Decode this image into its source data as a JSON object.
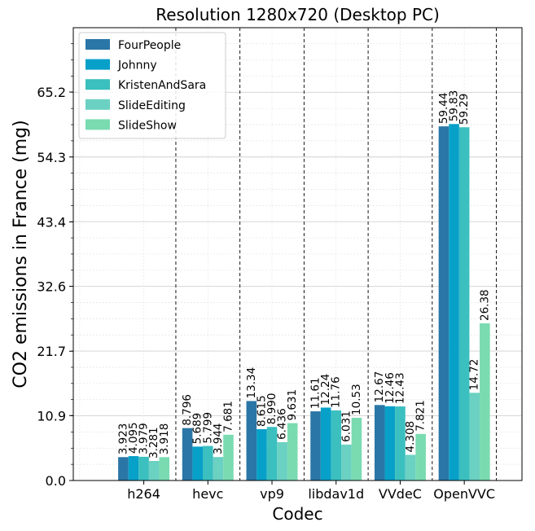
{
  "chart_data": {
    "type": "bar",
    "title": "Resolution 1280x720 (Desktop PC)",
    "xlabel": "Codec",
    "ylabel": "CO2 emissions in France (mg)",
    "categories": [
      "h264",
      "hevc",
      "vp9",
      "libdav1d",
      "VVdeC",
      "OpenVVC"
    ],
    "ylim": [
      0,
      76
    ],
    "yticks": [
      0.0,
      10.9,
      21.7,
      32.6,
      43.4,
      54.3,
      65.2
    ],
    "yticks_labels": [
      "0.0",
      "10.9",
      "21.7",
      "32.6",
      "43.4",
      "54.3",
      "65.2"
    ],
    "grid": true,
    "legend_position": "top-left",
    "series": [
      {
        "name": "FourPeople",
        "color": "#2a76a6",
        "values": [
          3.923,
          8.796,
          13.34,
          11.61,
          12.67,
          59.44
        ],
        "labels": [
          "3.923",
          "8.796",
          "13.34",
          "11.61",
          "12.67",
          "59.44"
        ]
      },
      {
        "name": "Johnny",
        "color": "#07a0c9",
        "values": [
          4.095,
          5.689,
          8.615,
          12.24,
          12.46,
          59.83
        ],
        "labels": [
          "4.095",
          "5.689",
          "8.615",
          "12.24",
          "12.46",
          "59.83"
        ]
      },
      {
        "name": "KristenAndSara",
        "color": "#3bbfbf",
        "values": [
          3.979,
          5.799,
          8.99,
          11.76,
          12.43,
          59.29
        ],
        "labels": [
          "3.979",
          "5.799",
          "8.990",
          "11.76",
          "12.43",
          "59.29"
        ]
      },
      {
        "name": "SlideEditing",
        "color": "#6bd1c2",
        "values": [
          3.281,
          3.944,
          6.436,
          6.031,
          4.308,
          14.72
        ],
        "labels": [
          "3.281",
          "3.944",
          "6.436",
          "6.031",
          "4.308",
          "14.72"
        ]
      },
      {
        "name": "SlideShow",
        "color": "#7adbb1",
        "values": [
          3.918,
          7.681,
          9.631,
          10.53,
          7.821,
          26.38
        ],
        "labels": [
          "3.918",
          "7.681",
          "9.631",
          "10.53",
          "7.821",
          "26.38"
        ]
      }
    ]
  }
}
